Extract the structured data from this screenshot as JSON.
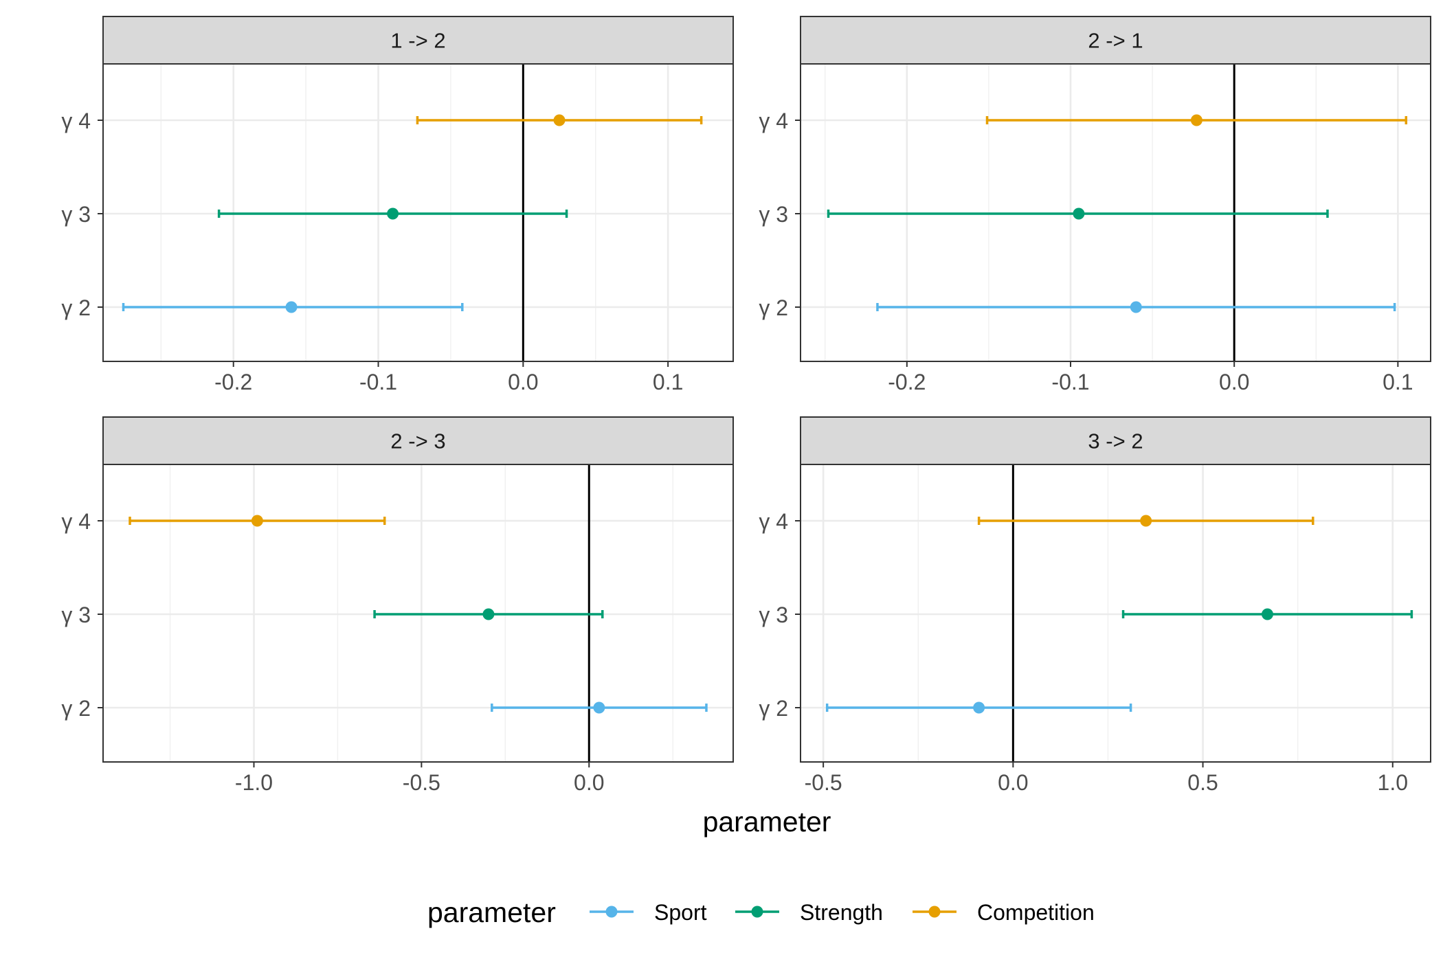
{
  "chart_data": {
    "type": "scatter",
    "subtype": "point-range (estimate with interval)",
    "xlabel": "parameter",
    "ylabel": "",
    "legend": {
      "title": "parameter",
      "position": "bottom",
      "entries": [
        {
          "name": "Sport",
          "color": "#56B4E9"
        },
        {
          "name": "Strength",
          "color": "#009E73"
        },
        {
          "name": "Competition",
          "color": "#E69F00"
        }
      ]
    },
    "grid": true,
    "reference_line_x": 0,
    "categories": [
      "γ 2",
      "γ 3",
      "γ 4"
    ],
    "panels": [
      {
        "title": "1 -> 2",
        "xlim": [
          -0.29,
          0.145
        ],
        "xticks": [
          -0.2,
          -0.1,
          0.0,
          0.1
        ],
        "xtick_labels": [
          "-0.2",
          "-0.1",
          "0.0",
          "0.1"
        ],
        "series": [
          {
            "name": "Sport",
            "category": "γ 2",
            "estimate": -0.16,
            "lower": -0.276,
            "upper": -0.042
          },
          {
            "name": "Strength",
            "category": "γ 3",
            "estimate": -0.09,
            "lower": -0.21,
            "upper": 0.03
          },
          {
            "name": "Competition",
            "category": "γ 4",
            "estimate": 0.025,
            "lower": -0.073,
            "upper": 0.123
          }
        ]
      },
      {
        "title": "2 -> 1",
        "xlim": [
          -0.265,
          0.12
        ],
        "xticks": [
          -0.2,
          -0.1,
          0.0,
          0.1
        ],
        "xtick_labels": [
          "-0.2",
          "-0.1",
          "0.0",
          "0.1"
        ],
        "series": [
          {
            "name": "Sport",
            "category": "γ 2",
            "estimate": -0.06,
            "lower": -0.218,
            "upper": 0.098
          },
          {
            "name": "Strength",
            "category": "γ 3",
            "estimate": -0.095,
            "lower": -0.248,
            "upper": 0.057
          },
          {
            "name": "Competition",
            "category": "γ 4",
            "estimate": -0.023,
            "lower": -0.151,
            "upper": 0.105
          }
        ]
      },
      {
        "title": "2 -> 3",
        "xlim": [
          -1.45,
          0.43
        ],
        "xticks": [
          -1.0,
          -0.5,
          0.0
        ],
        "xtick_labels": [
          "-1.0",
          "-0.5",
          "0.0"
        ],
        "series": [
          {
            "name": "Sport",
            "category": "γ 2",
            "estimate": 0.03,
            "lower": -0.29,
            "upper": 0.35
          },
          {
            "name": "Strength",
            "category": "γ 3",
            "estimate": -0.3,
            "lower": -0.64,
            "upper": 0.04
          },
          {
            "name": "Competition",
            "category": "γ 4",
            "estimate": -0.99,
            "lower": -1.37,
            "upper": -0.61
          }
        ]
      },
      {
        "title": "3 -> 2",
        "xlim": [
          -0.56,
          1.1
        ],
        "xticks": [
          -0.5,
          0.0,
          0.5,
          1.0
        ],
        "xtick_labels": [
          "-0.5",
          "0.0",
          "0.5",
          "1.0"
        ],
        "series": [
          {
            "name": "Sport",
            "category": "γ 2",
            "estimate": -0.09,
            "lower": -0.49,
            "upper": 0.31
          },
          {
            "name": "Strength",
            "category": "γ 3",
            "estimate": 0.67,
            "lower": 0.29,
            "upper": 1.05
          },
          {
            "name": "Competition",
            "category": "γ 4",
            "estimate": 0.35,
            "lower": -0.09,
            "upper": 0.79
          }
        ]
      }
    ]
  }
}
